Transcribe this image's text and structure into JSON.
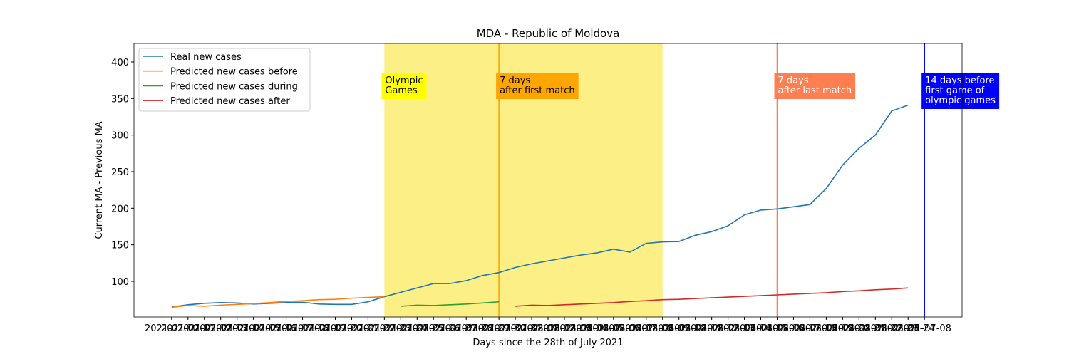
{
  "chart_data": {
    "type": "line",
    "title": "MDA - Republic of Moldova",
    "xlabel": "Days since the 28th of July 2021",
    "ylabel": "Current MA - Previous MA",
    "categories": [
      "2021-07-10",
      "2021-07-11",
      "2021-07-12",
      "2021-07-13",
      "2021-07-14",
      "2021-07-15",
      "2021-07-16",
      "2021-07-17",
      "2021-07-18",
      "2021-07-19",
      "2021-07-20",
      "2021-07-21",
      "2021-07-22",
      "2021-07-23",
      "2021-07-24",
      "2021-07-25",
      "2021-07-26",
      "2021-07-27",
      "2021-07-28",
      "2021-07-29",
      "2021-07-30",
      "2021-07-31",
      "2021-08-01",
      "2021-08-02",
      "2021-08-03",
      "2021-08-04",
      "2021-08-05",
      "2021-08-06",
      "2021-08-07",
      "2021-08-08",
      "2021-08-09",
      "2021-08-10",
      "2021-08-11",
      "2021-08-12",
      "2021-08-13",
      "2021-08-14",
      "2021-08-15",
      "2021-08-16",
      "2021-08-17",
      "2021-08-18",
      "2021-08-19",
      "2021-08-20",
      "2021-08-21",
      "2021-08-22",
      "2021-08-23",
      "2021-08-24",
      "2021-07-08"
    ],
    "series": [
      {
        "name": "Real new cases",
        "color": "#1f77b4",
        "values": [
          65,
          68,
          70,
          71,
          70.5,
          69,
          70,
          71,
          71.5,
          69,
          68.5,
          68.5,
          72,
          79,
          85,
          91,
          97,
          97,
          101,
          108,
          112,
          119,
          124,
          128,
          132,
          136,
          139,
          144,
          140,
          152,
          154,
          154.5,
          163,
          168,
          176,
          191,
          197.5,
          199,
          202,
          205,
          227,
          259,
          282,
          300,
          333,
          341,
          null
        ]
      },
      {
        "name": "Predicted new cases before",
        "color": "#ff7f0e",
        "values": [
          64.5,
          67,
          66,
          67.5,
          68.5,
          69.5,
          71,
          72.5,
          73.5,
          75,
          75.5,
          77,
          78,
          79,
          null,
          null,
          null,
          null,
          null,
          null,
          null,
          null,
          null,
          null,
          null,
          null,
          null,
          null,
          null,
          null,
          null,
          null,
          null,
          null,
          null,
          null,
          null,
          null,
          null,
          null,
          null,
          null,
          null,
          null,
          null,
          null,
          null
        ]
      },
      {
        "name": "Predicted new cases during",
        "color": "#2ca02c",
        "values": [
          null,
          null,
          null,
          null,
          null,
          null,
          null,
          null,
          null,
          null,
          null,
          null,
          null,
          null,
          66,
          67.5,
          67,
          68,
          69,
          70.5,
          72,
          null,
          null,
          null,
          null,
          null,
          null,
          null,
          null,
          null,
          null,
          null,
          null,
          null,
          null,
          null,
          null,
          null,
          null,
          null,
          null,
          null,
          null,
          null,
          null,
          null,
          null
        ]
      },
      {
        "name": "Predicted new cases after",
        "color": "#d62728",
        "values": [
          null,
          null,
          null,
          null,
          null,
          null,
          null,
          null,
          null,
          null,
          null,
          null,
          null,
          null,
          null,
          null,
          null,
          null,
          null,
          null,
          null,
          66,
          67.5,
          67,
          68,
          69,
          70,
          71,
          72.5,
          73.5,
          75,
          75.5,
          76.5,
          77.5,
          78.5,
          79.5,
          80.5,
          81.5,
          82.5,
          83.5,
          84.5,
          86,
          87,
          88.5,
          89.5,
          91,
          null
        ]
      }
    ],
    "ylim": [
      51.3,
      425.3
    ],
    "yticks": [
      100,
      150,
      200,
      250,
      300,
      350,
      400
    ],
    "legend": "upper left",
    "span": {
      "start": "2021-07-23",
      "end": "2021-08-09",
      "color": "#fcef86",
      "label": [
        "Olympic",
        "Games"
      ],
      "box": "#ffff00",
      "text_color": "#000000"
    },
    "vlines": [
      {
        "x": "2021-07-30",
        "color": "#ffa500",
        "label": [
          "7 days",
          "after first match"
        ],
        "box": "#ffa500",
        "text_color": "#000000"
      },
      {
        "x": "2021-08-16",
        "color": "#ff7f50",
        "label": [
          "7 days",
          "after last match"
        ],
        "box": "#ff7f50",
        "text_color": "#ffffff"
      },
      {
        "x": "2021-07-08",
        "color": "#0000ff",
        "label": [
          "14 days before",
          "first game of",
          "olympic games"
        ],
        "box": "#0000ff",
        "text_color": "#ffffff"
      }
    ]
  }
}
